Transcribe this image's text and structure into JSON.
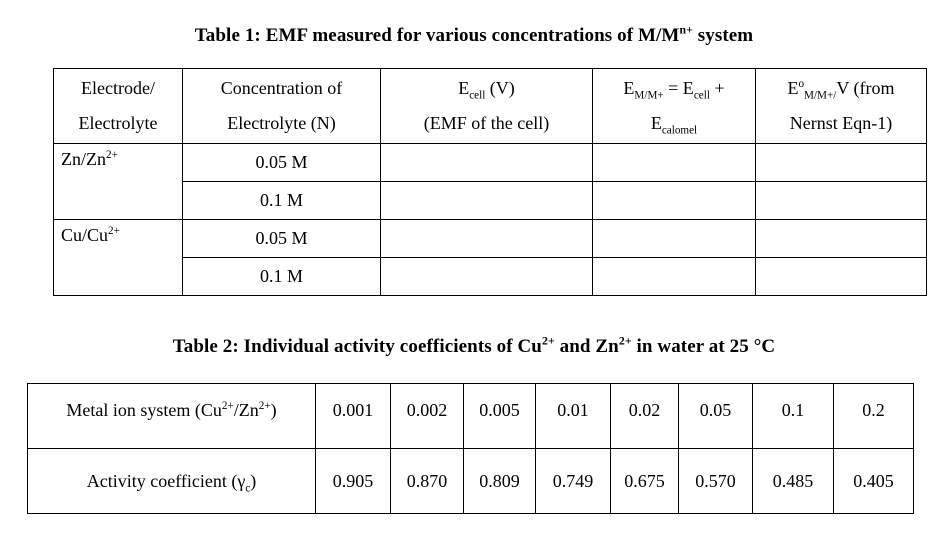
{
  "document": {
    "background": "#ffffff",
    "text_color": "#000000",
    "border_color": "#000000"
  },
  "table1": {
    "title": [
      {
        "t": "Table 1: EMF measured for various concentrations of M/M"
      },
      {
        "t": "n+",
        "s": "sup"
      },
      {
        "t": " system"
      }
    ],
    "headers": [
      {
        "line1": [
          {
            "t": "Electrode/"
          }
        ],
        "line2": [
          {
            "t": "Electrolyte"
          }
        ]
      },
      {
        "line1": [
          {
            "t": "Concentration of"
          }
        ],
        "line2": [
          {
            "t": "Electrolyte (N)"
          }
        ]
      },
      {
        "line1": [
          {
            "t": "E"
          },
          {
            "t": "cell",
            "s": "sub"
          },
          {
            "t": " (V)"
          }
        ],
        "line2": [
          {
            "t": "(EMF of the cell)"
          }
        ]
      },
      {
        "line1": [
          {
            "t": "E"
          },
          {
            "t": "M/M+",
            "s": "sub"
          },
          {
            "t": " = E"
          },
          {
            "t": "cell",
            "s": "sub"
          },
          {
            "t": " +"
          }
        ],
        "line2": [
          {
            "t": "E"
          },
          {
            "t": "calomel",
            "s": "sub"
          }
        ]
      },
      {
        "line1": [
          {
            "t": "E"
          },
          {
            "t": "o",
            "s": "sup"
          },
          {
            "t": "M/M+/",
            "s": "sub"
          },
          {
            "t": "V (from"
          }
        ],
        "line2": [
          {
            "t": "Nernst Eqn-1)"
          }
        ]
      }
    ],
    "electrode_groups": [
      {
        "electrode": [
          {
            "t": "Zn/Zn"
          },
          {
            "t": "2+",
            "s": "sup"
          }
        ],
        "concentrations": [
          "0.05 M",
          "0.1 M"
        ]
      },
      {
        "electrode": [
          {
            "t": "Cu/Cu"
          },
          {
            "t": "2+",
            "s": "sup"
          }
        ],
        "concentrations": [
          "0.05 M",
          "0.1 M"
        ]
      }
    ],
    "empty_cell": ""
  },
  "table2": {
    "title": [
      {
        "t": "Table 2: Individual activity coefficients of Cu"
      },
      {
        "t": "2+",
        "s": "sup"
      },
      {
        "t": " and Zn"
      },
      {
        "t": "2+",
        "s": "sup"
      },
      {
        "t": " in water at 25 °C"
      }
    ],
    "row1": {
      "label": [
        {
          "t": "Metal ion system (Cu"
        },
        {
          "t": "2+",
          "s": "sup"
        },
        {
          "t": "/Zn"
        },
        {
          "t": "2+",
          "s": "sup"
        },
        {
          "t": ")"
        }
      ],
      "values": [
        "0.001",
        "0.002",
        "0.005",
        "0.01",
        "0.02",
        "0.05",
        "0.1",
        "0.2"
      ]
    },
    "row2": {
      "label": [
        {
          "t": "Activity coefficient (γ"
        },
        {
          "t": "c",
          "s": "sub"
        },
        {
          "t": ")"
        }
      ],
      "values": [
        "0.905",
        "0.870",
        "0.809",
        "0.749",
        "0.675",
        "0.570",
        "0.485",
        "0.405"
      ]
    }
  }
}
